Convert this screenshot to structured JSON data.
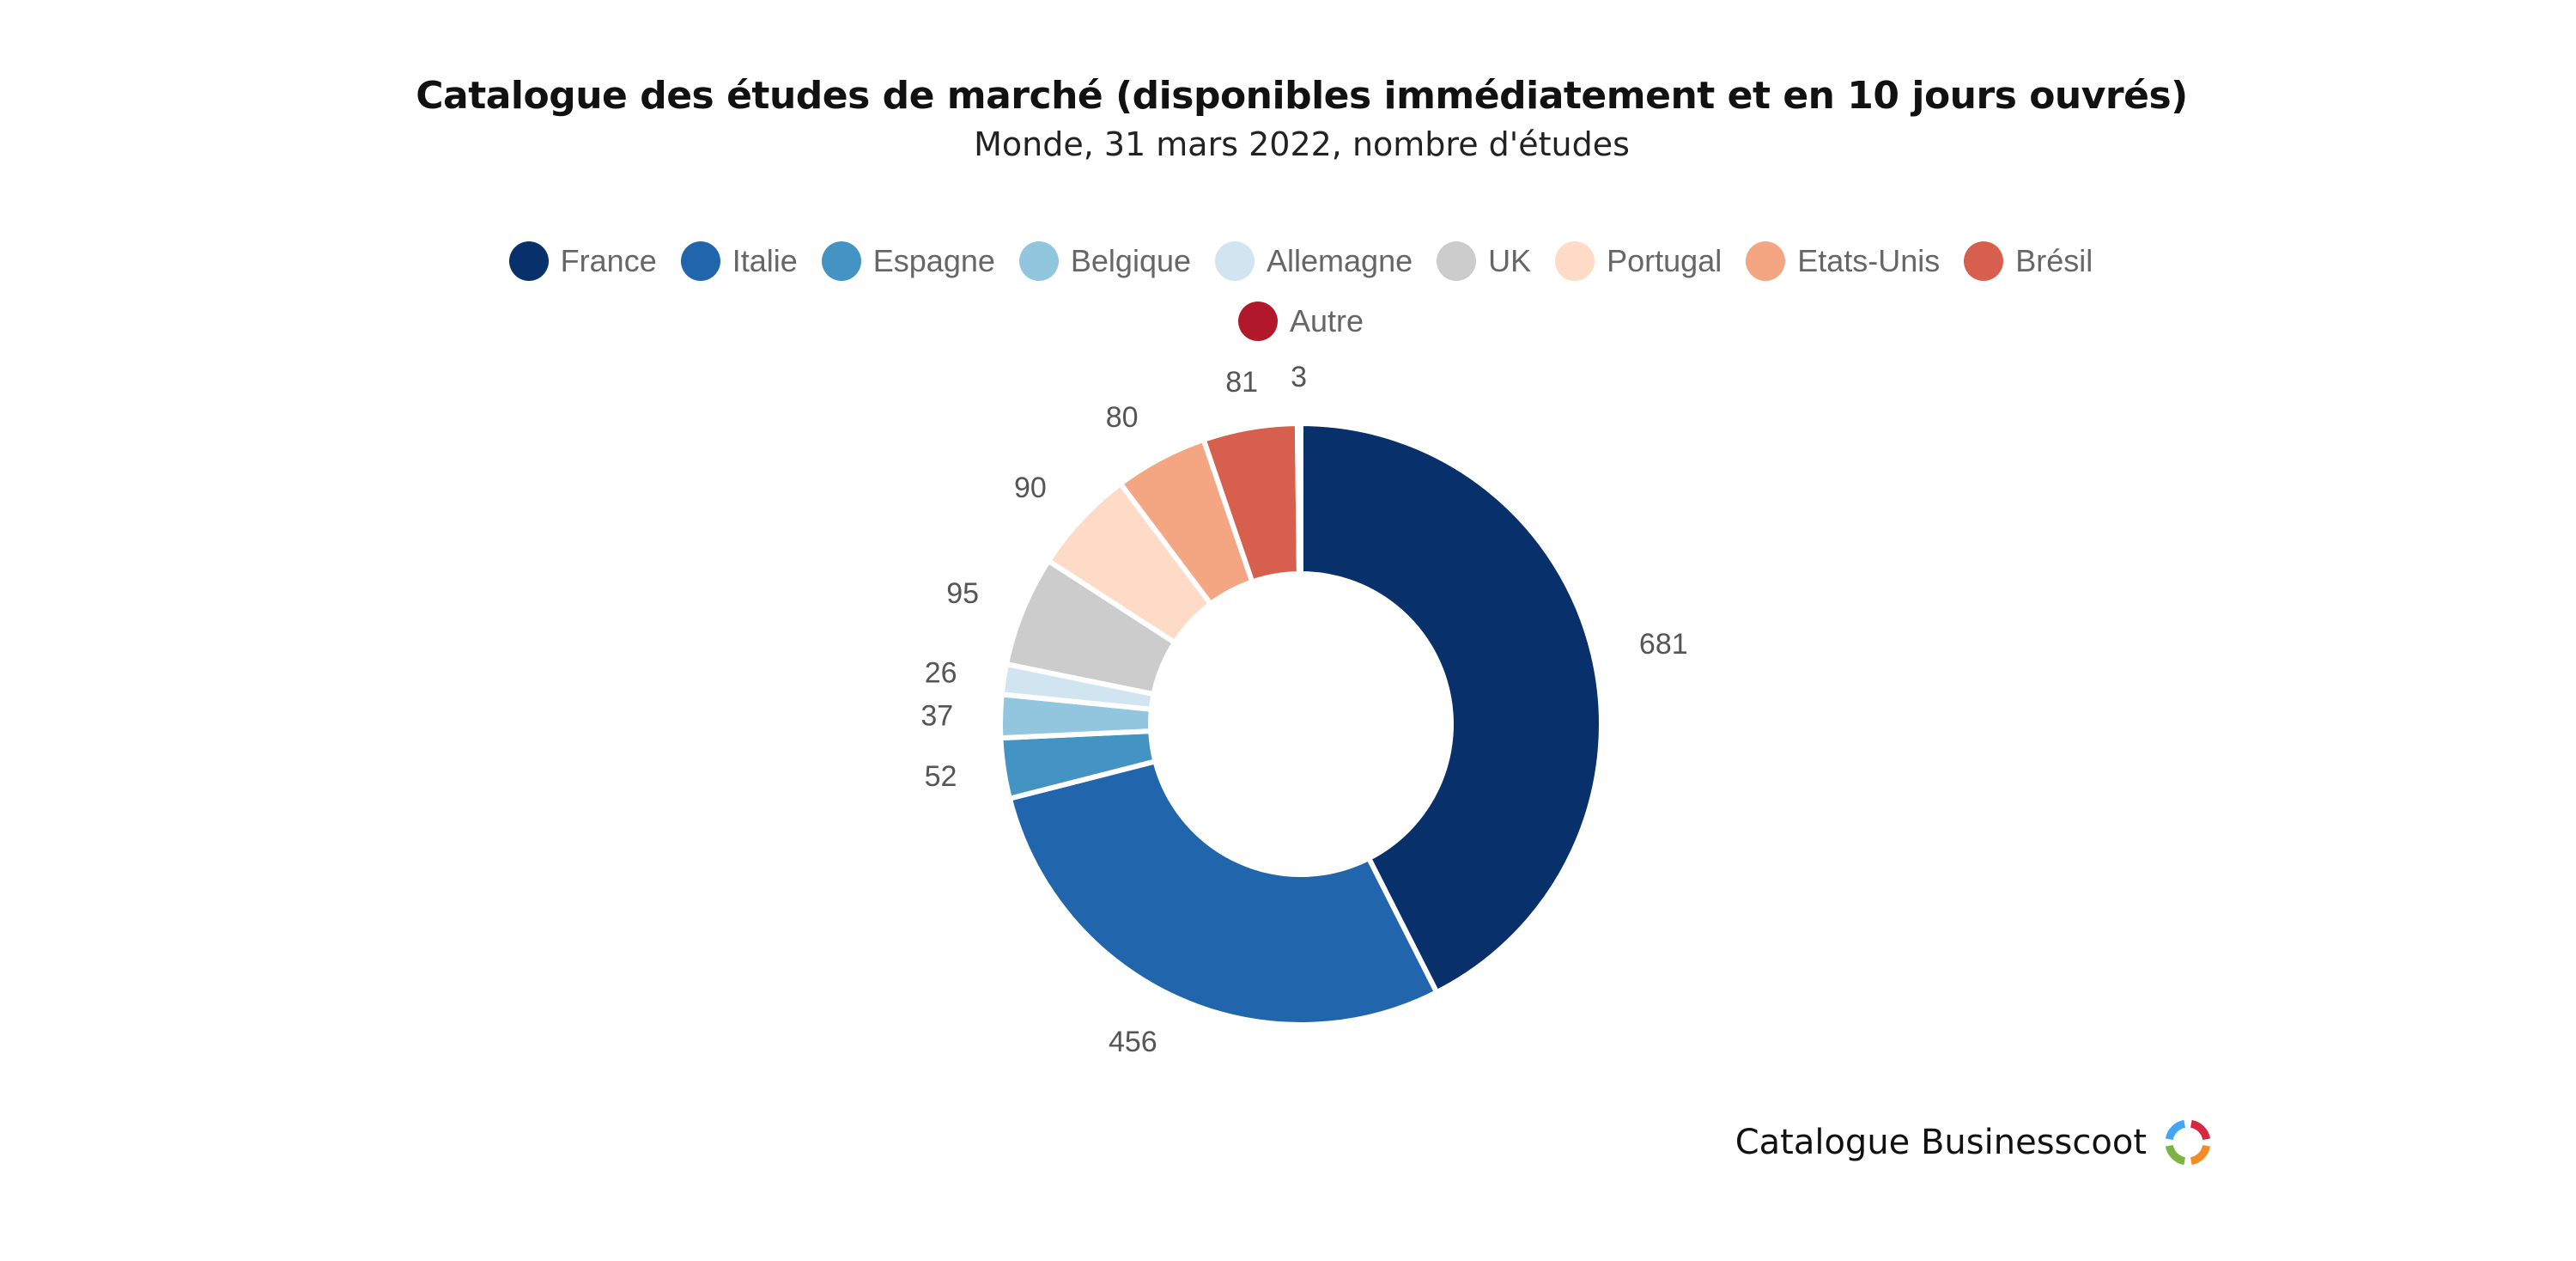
{
  "header": {
    "title": "Catalogue des études de marché (disponibles immédiatement et en 10 jours ouvrés)",
    "subtitle": "Monde, 31 mars 2022, nombre d'études"
  },
  "chart_data": {
    "type": "pie",
    "variant": "donut",
    "title": "Catalogue des études de marché (disponibles immédiatement et en 10 jours ouvrés)",
    "subtitle": "Monde, 31 mars 2022, nombre d'études",
    "legend_position": "top",
    "categories": [
      "France",
      "Italie",
      "Espagne",
      "Belgique",
      "Allemagne",
      "UK",
      "Portugal",
      "Etats-Unis",
      "Brésil",
      "Autre"
    ],
    "values": [
      681,
      456,
      52,
      37,
      26,
      95,
      90,
      80,
      81,
      3
    ],
    "colors": [
      "#08306b",
      "#2166ac",
      "#4393c3",
      "#92c5de",
      "#d1e5f0",
      "#cccccc",
      "#fddbc7",
      "#f4a582",
      "#d6604d",
      "#b2182b"
    ]
  },
  "footer": {
    "text": "Catalogue Businesscoot",
    "logo_colors": [
      "#d7263d",
      "#f28c28",
      "#7cb342",
      "#42a5f5"
    ]
  }
}
